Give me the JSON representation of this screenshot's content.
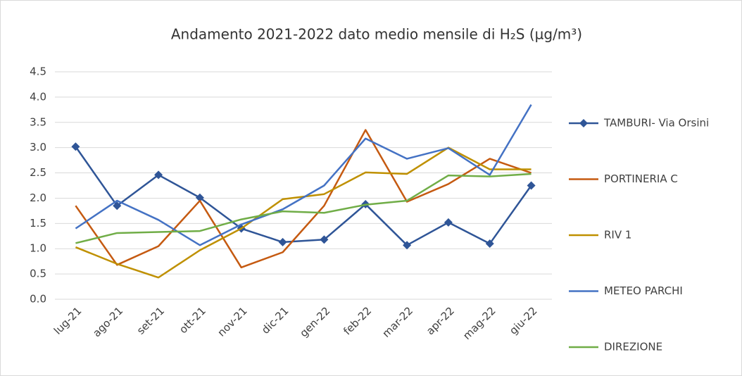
{
  "chart_data": {
    "type": "line",
    "title": "Andamento 2021-2022 dato medio mensile di H₂S (µg/m³)",
    "categories": [
      "lug-21",
      "ago-21",
      "set-21",
      "ott-21",
      "nov-21",
      "dic-21",
      "gen-22",
      "feb-22",
      "mar-22",
      "apr-22",
      "mag-22",
      "giu-22"
    ],
    "series": [
      {
        "name": "TAMBURI- Via Orsini",
        "color": "#2f5597",
        "marker": "diamond",
        "values": [
          3.02,
          1.85,
          2.46,
          2.01,
          1.4,
          1.13,
          1.18,
          1.88,
          1.07,
          1.52,
          1.1,
          2.25
        ]
      },
      {
        "name": "PORTINERIA C",
        "color": "#c55a11",
        "values": [
          1.85,
          0.68,
          1.05,
          1.95,
          0.63,
          0.93,
          1.85,
          3.35,
          1.93,
          2.28,
          2.78,
          2.5
        ]
      },
      {
        "name": "RIV 1",
        "color": "#bf9000",
        "values": [
          1.03,
          0.7,
          0.43,
          0.97,
          1.4,
          1.98,
          2.08,
          2.51,
          2.48,
          3.0,
          2.57,
          2.57
        ]
      },
      {
        "name": "METEO PARCHI",
        "color": "#4472c4",
        "values": [
          1.4,
          1.95,
          1.57,
          1.07,
          1.48,
          1.78,
          2.25,
          3.18,
          2.78,
          2.99,
          2.46,
          3.85
        ]
      },
      {
        "name": "DIREZIONE",
        "color": "#70ad47",
        "values": [
          1.11,
          1.31,
          1.33,
          1.35,
          1.58,
          1.74,
          1.71,
          1.87,
          1.95,
          2.45,
          2.43,
          2.48
        ]
      }
    ],
    "ylim": [
      0,
      4.5
    ],
    "yticks": [
      {
        "value": 0,
        "label": "0.0"
      },
      0.5,
      {
        "value": 1,
        "label": "1.0"
      },
      1.5,
      {
        "value": 2,
        "label": "2.0"
      },
      2.5,
      {
        "value": 3,
        "label": "3.0"
      },
      3.5,
      {
        "value": 4,
        "label": "4.0"
      },
      4.5
    ],
    "grid": true,
    "legend": "right"
  }
}
